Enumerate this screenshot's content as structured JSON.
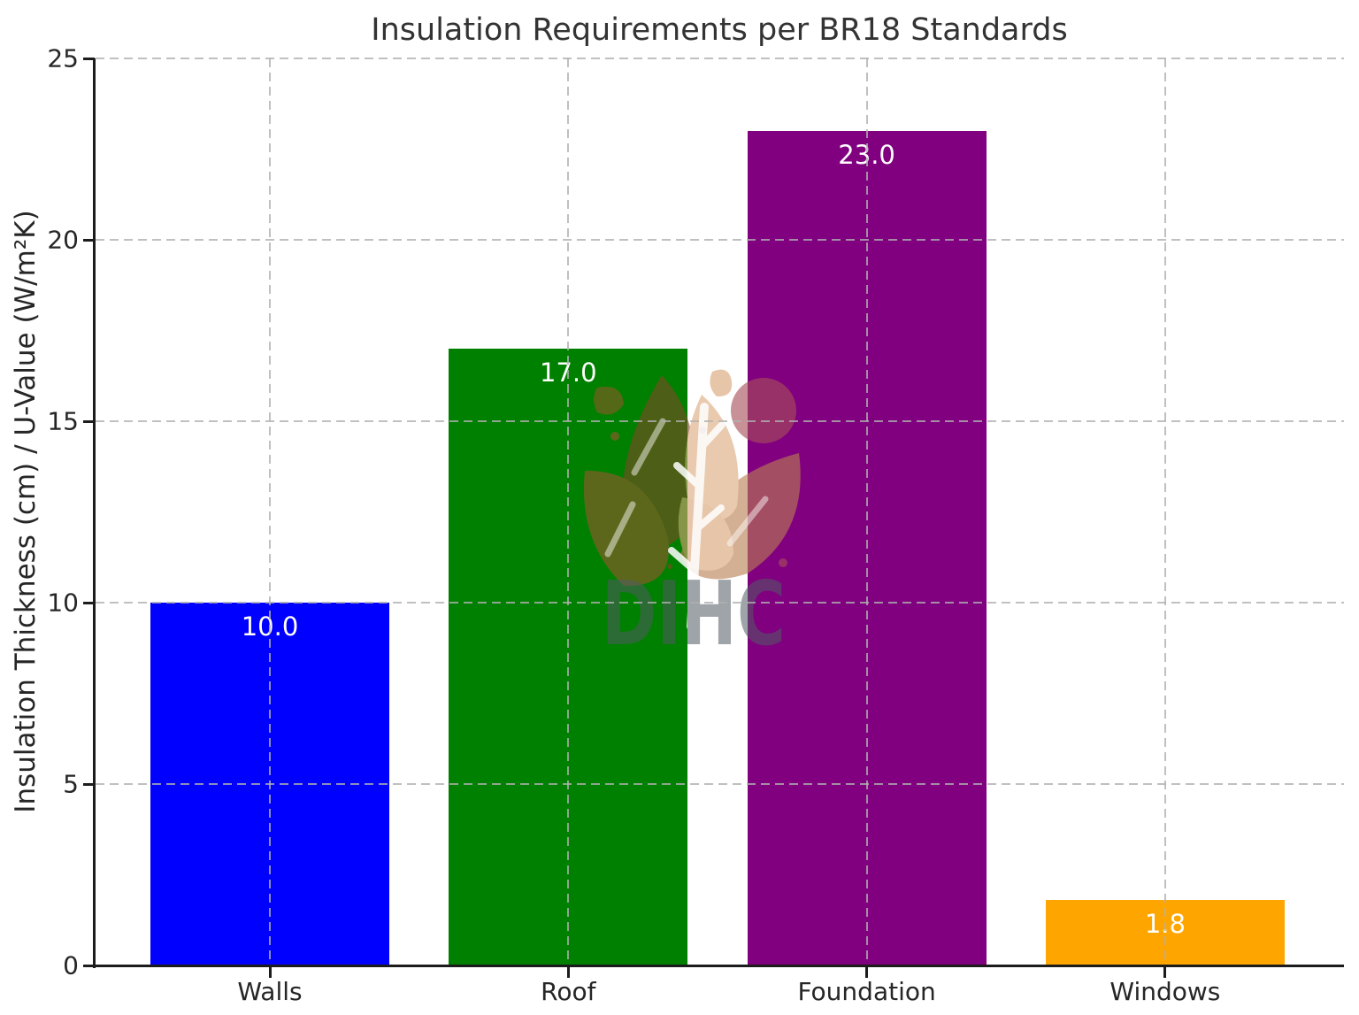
{
  "chart_data": {
    "type": "bar",
    "title": "Insulation Requirements per BR18 Standards",
    "xlabel": "",
    "ylabel": "Insulation Thickness (cm) / U-Value (W/m²K)",
    "categories": [
      "Walls",
      "Roof",
      "Foundation",
      "Windows"
    ],
    "values": [
      10.0,
      17.0,
      23.0,
      1.8
    ],
    "value_labels": [
      "10.0",
      "17.0",
      "23.0",
      "1.8"
    ],
    "bar_colors": [
      "#0000ff",
      "#008000",
      "#800080",
      "#ffa500"
    ],
    "value_label_color": "#ffffff",
    "ylim": [
      0,
      25
    ],
    "yticks": [
      0,
      5,
      10,
      15,
      20,
      25
    ],
    "grid": true,
    "grid_style": "dashed",
    "grid_color": "#b0b0b0",
    "legend": null
  },
  "watermark": {
    "text": "DIHC",
    "icon": "leaf-plant-logo",
    "text_color": "#515b63",
    "circle_color": "#a84f58",
    "leaf_dark_color": "#7d4a24",
    "leaf_mid_color": "#96582e",
    "leaf_light_color": "#d9a273",
    "stem_color": "#ffffff"
  }
}
